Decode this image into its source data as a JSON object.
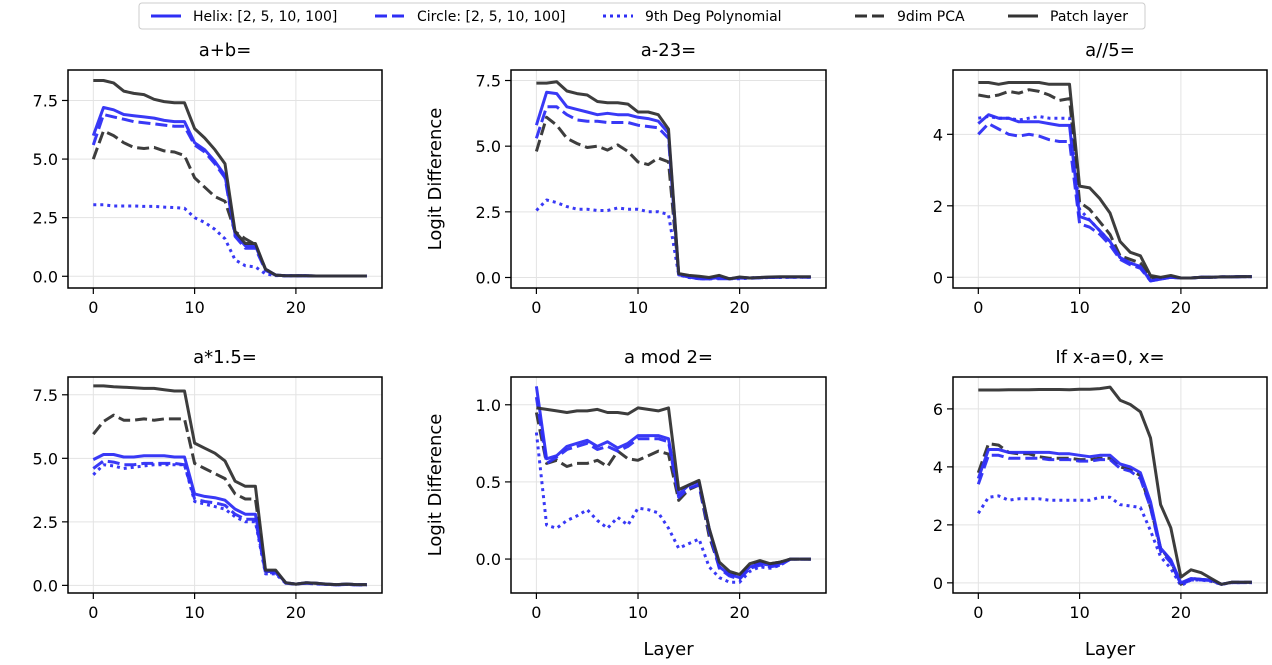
{
  "legend": [
    {
      "key": "helix",
      "label": "Helix: [2, 5, 10, 100]",
      "color": "#2e2ef5",
      "dash": "solid"
    },
    {
      "key": "circle",
      "label": "Circle: [2, 5, 10, 100]",
      "color": "#2e2ef5",
      "dash": "dashed"
    },
    {
      "key": "poly",
      "label": "9th Deg Polynomial",
      "color": "#2e2ef5",
      "dash": "dotted"
    },
    {
      "key": "pca",
      "label": "9dim PCA",
      "color": "#333333",
      "dash": "dashed"
    },
    {
      "key": "patch",
      "label": "Patch layer",
      "color": "#333333",
      "dash": "solid"
    }
  ],
  "chart_data": [
    {
      "type": "line",
      "title": "a+b=",
      "xlabel": "",
      "ylabel": "",
      "xlim": [
        -2.5,
        28.5
      ],
      "ylim": [
        -0.5,
        8.8
      ],
      "xticks": [
        0,
        10,
        20
      ],
      "yticks": [
        0.0,
        2.5,
        5.0,
        7.5
      ],
      "ytick_labels": [
        "0.0",
        "2.5",
        "5.0",
        "7.5"
      ],
      "grid": true,
      "x": [
        0,
        1,
        2,
        3,
        4,
        5,
        6,
        7,
        8,
        9,
        10,
        11,
        12,
        13,
        14,
        15,
        16,
        17,
        18,
        19,
        20,
        21,
        22,
        23,
        24,
        25,
        26,
        27
      ],
      "series": {
        "helix": [
          6.0,
          7.2,
          7.1,
          6.9,
          6.85,
          6.8,
          6.75,
          6.65,
          6.6,
          6.6,
          5.7,
          5.4,
          4.9,
          4.3,
          1.8,
          1.3,
          1.3,
          0.3,
          0.05,
          0.02,
          0.02,
          0.02,
          0.01,
          0.01,
          0.01,
          0.01,
          0.01,
          0.01
        ],
        "circle": [
          5.6,
          6.9,
          6.8,
          6.7,
          6.6,
          6.55,
          6.5,
          6.45,
          6.4,
          6.4,
          5.6,
          5.3,
          4.8,
          4.2,
          1.7,
          1.2,
          1.2,
          0.25,
          0.05,
          0.02,
          0.02,
          0.02,
          0.01,
          0.01,
          0.01,
          0.01,
          0.01,
          0.01
        ],
        "poly": [
          3.05,
          3.05,
          3.0,
          3.0,
          3.0,
          2.98,
          2.98,
          2.95,
          2.93,
          2.9,
          2.5,
          2.3,
          2.0,
          1.6,
          0.7,
          0.45,
          0.4,
          0.1,
          0.03,
          0.02,
          0.02,
          0.02,
          0.01,
          0.01,
          0.01,
          0.01,
          0.01,
          0.01
        ],
        "pca": [
          5.0,
          6.2,
          6.0,
          5.7,
          5.5,
          5.45,
          5.5,
          5.35,
          5.3,
          5.15,
          4.2,
          3.8,
          3.4,
          3.2,
          1.9,
          1.6,
          1.35,
          0.3,
          0.05,
          0.02,
          0.02,
          0.02,
          0.01,
          0.01,
          0.01,
          0.01,
          0.01,
          0.01
        ],
        "patch": [
          8.35,
          8.35,
          8.25,
          7.9,
          7.8,
          7.75,
          7.55,
          7.45,
          7.4,
          7.4,
          6.3,
          5.9,
          5.4,
          4.8,
          1.9,
          1.4,
          1.4,
          0.3,
          0.05,
          0.02,
          0.02,
          0.02,
          0.01,
          0.01,
          0.01,
          0.01,
          0.01,
          0.01
        ]
      }
    },
    {
      "type": "line",
      "title": "a-23=",
      "xlabel": "",
      "ylabel": "Logit Difference",
      "xlim": [
        -2.5,
        28.5
      ],
      "ylim": [
        -0.4,
        7.9
      ],
      "xticks": [
        0,
        10,
        20
      ],
      "yticks": [
        0.0,
        2.5,
        5.0,
        7.5
      ],
      "ytick_labels": [
        "0.0",
        "2.5",
        "5.0",
        "7.5"
      ],
      "grid": true,
      "x": [
        0,
        1,
        2,
        3,
        4,
        5,
        6,
        7,
        8,
        9,
        10,
        11,
        12,
        13,
        14,
        15,
        16,
        17,
        18,
        19,
        20,
        21,
        22,
        23,
        24,
        25,
        26,
        27
      ],
      "series": {
        "helix": [
          5.8,
          7.05,
          7.0,
          6.5,
          6.4,
          6.3,
          6.2,
          6.25,
          6.2,
          6.2,
          6.1,
          6.05,
          5.95,
          5.5,
          0.1,
          0.05,
          -0.05,
          -0.05,
          0.0,
          -0.05,
          0.0,
          -0.02,
          0.0,
          0.01,
          0.02,
          0.02,
          0.02,
          0.02
        ],
        "circle": [
          5.3,
          6.5,
          6.5,
          6.2,
          6.0,
          5.95,
          5.95,
          5.9,
          5.9,
          5.9,
          5.8,
          5.75,
          5.7,
          5.3,
          0.1,
          0.02,
          -0.05,
          -0.05,
          -0.05,
          -0.05,
          -0.02,
          -0.03,
          -0.01,
          0.0,
          0.01,
          0.01,
          0.01,
          0.01
        ],
        "poly": [
          2.55,
          2.95,
          2.85,
          2.7,
          2.6,
          2.6,
          2.55,
          2.55,
          2.65,
          2.6,
          2.6,
          2.5,
          2.5,
          2.4,
          0.1,
          0.0,
          -0.05,
          -0.05,
          -0.02,
          -0.05,
          -0.05,
          -0.02,
          -0.01,
          0.0,
          0.0,
          0.01,
          0.01,
          0.01
        ],
        "pca": [
          4.8,
          6.1,
          5.8,
          5.3,
          5.1,
          4.95,
          5.0,
          4.85,
          5.05,
          4.8,
          4.4,
          4.3,
          4.55,
          4.4,
          0.15,
          0.05,
          0.0,
          -0.05,
          0.05,
          -0.05,
          0.0,
          -0.02,
          0.0,
          0.01,
          0.02,
          0.02,
          0.02,
          0.02
        ],
        "patch": [
          7.4,
          7.4,
          7.45,
          7.1,
          7.0,
          6.95,
          6.7,
          6.65,
          6.65,
          6.6,
          6.3,
          6.3,
          6.2,
          5.65,
          0.15,
          0.08,
          0.05,
          0.0,
          0.08,
          -0.05,
          0.02,
          -0.02,
          0.0,
          0.02,
          0.03,
          0.03,
          0.03,
          0.03
        ]
      }
    },
    {
      "type": "line",
      "title": "a//5=",
      "xlabel": "",
      "ylabel": "",
      "xlim": [
        -2.5,
        28.5
      ],
      "ylim": [
        -0.3,
        5.8
      ],
      "xticks": [
        0,
        10,
        20
      ],
      "yticks": [
        0,
        2,
        4
      ],
      "ytick_labels": [
        "0",
        "2",
        "4"
      ],
      "grid": true,
      "x": [
        0,
        1,
        2,
        3,
        4,
        5,
        6,
        7,
        8,
        9,
        10,
        11,
        12,
        13,
        14,
        15,
        16,
        17,
        18,
        19,
        20,
        21,
        22,
        23,
        24,
        25,
        26,
        27
      ],
      "series": {
        "helix": [
          4.3,
          4.55,
          4.45,
          4.45,
          4.35,
          4.35,
          4.35,
          4.3,
          4.25,
          4.25,
          1.7,
          1.6,
          1.3,
          1.0,
          0.55,
          0.4,
          0.3,
          -0.1,
          -0.05,
          0.0,
          -0.02,
          -0.02,
          0.0,
          0.0,
          0.01,
          0.01,
          0.02,
          0.02
        ],
        "circle": [
          4.0,
          4.3,
          4.15,
          4.0,
          3.95,
          4.0,
          3.95,
          3.85,
          3.8,
          3.8,
          1.5,
          1.4,
          1.2,
          0.9,
          0.5,
          0.35,
          0.25,
          -0.1,
          -0.05,
          0.0,
          -0.02,
          -0.02,
          0.0,
          0.0,
          0.01,
          0.01,
          0.02,
          0.02
        ],
        "poly": [
          4.45,
          4.5,
          4.45,
          4.45,
          4.4,
          4.45,
          4.5,
          4.45,
          4.45,
          4.45,
          1.9,
          1.6,
          1.3,
          1.0,
          0.55,
          0.4,
          0.3,
          -0.05,
          -0.03,
          0.0,
          -0.02,
          -0.02,
          0.0,
          0.0,
          0.01,
          0.01,
          0.02,
          0.02
        ],
        "pca": [
          5.1,
          5.05,
          5.1,
          5.2,
          5.15,
          5.25,
          5.2,
          5.1,
          4.95,
          5.0,
          2.1,
          1.9,
          1.55,
          1.2,
          0.6,
          0.5,
          0.4,
          0.0,
          -0.02,
          0.0,
          -0.02,
          -0.02,
          0.0,
          0.0,
          0.01,
          0.01,
          0.02,
          0.02
        ],
        "patch": [
          5.45,
          5.45,
          5.4,
          5.45,
          5.45,
          5.45,
          5.45,
          5.4,
          5.4,
          5.4,
          2.55,
          2.5,
          2.2,
          1.8,
          1.0,
          0.7,
          0.6,
          0.05,
          0.0,
          0.05,
          -0.02,
          -0.02,
          0.0,
          0.0,
          0.01,
          0.01,
          0.02,
          0.02
        ]
      }
    },
    {
      "type": "line",
      "title": "a*1.5=",
      "xlabel": "",
      "ylabel": "",
      "xlim": [
        -2.5,
        28.5
      ],
      "ylim": [
        -0.3,
        8.2
      ],
      "xticks": [
        0,
        10,
        20
      ],
      "yticks": [
        0.0,
        2.5,
        5.0,
        7.5
      ],
      "ytick_labels": [
        "0.0",
        "2.5",
        "5.0",
        "7.5"
      ],
      "grid": true,
      "x": [
        0,
        1,
        2,
        3,
        4,
        5,
        6,
        7,
        8,
        9,
        10,
        11,
        12,
        13,
        14,
        15,
        16,
        17,
        18,
        19,
        20,
        21,
        22,
        23,
        24,
        25,
        26,
        27
      ],
      "series": {
        "helix": [
          4.95,
          5.15,
          5.15,
          5.05,
          5.05,
          5.1,
          5.1,
          5.1,
          5.05,
          5.05,
          3.6,
          3.5,
          3.45,
          3.35,
          3.0,
          2.8,
          2.8,
          0.55,
          0.55,
          0.1,
          0.05,
          0.1,
          0.08,
          0.05,
          0.03,
          0.05,
          0.03,
          0.03
        ],
        "circle": [
          4.6,
          4.9,
          4.85,
          4.75,
          4.75,
          4.8,
          4.8,
          4.8,
          4.8,
          4.75,
          3.4,
          3.3,
          3.25,
          3.15,
          2.8,
          2.6,
          2.6,
          0.5,
          0.5,
          0.08,
          0.05,
          0.08,
          0.06,
          0.04,
          0.02,
          0.04,
          0.02,
          0.02
        ],
        "poly": [
          4.35,
          4.75,
          4.7,
          4.6,
          4.65,
          4.7,
          4.75,
          4.75,
          4.75,
          4.75,
          3.3,
          3.2,
          3.1,
          3.0,
          2.7,
          2.5,
          2.5,
          0.45,
          0.45,
          0.08,
          0.05,
          0.08,
          0.06,
          0.04,
          0.02,
          0.04,
          0.02,
          0.02
        ],
        "pca": [
          5.95,
          6.45,
          6.7,
          6.5,
          6.5,
          6.55,
          6.5,
          6.55,
          6.55,
          6.55,
          4.8,
          4.6,
          4.4,
          4.2,
          3.6,
          3.4,
          3.4,
          0.55,
          0.55,
          0.1,
          0.05,
          0.1,
          0.08,
          0.05,
          0.03,
          0.05,
          0.03,
          0.03
        ],
        "patch": [
          7.85,
          7.85,
          7.82,
          7.8,
          7.78,
          7.75,
          7.75,
          7.7,
          7.65,
          7.65,
          5.6,
          5.4,
          5.2,
          4.9,
          4.1,
          3.9,
          3.9,
          0.6,
          0.6,
          0.1,
          0.05,
          0.1,
          0.08,
          0.05,
          0.03,
          0.05,
          0.03,
          0.03
        ]
      }
    },
    {
      "type": "line",
      "title": "a mod 2=",
      "xlabel": "Layer",
      "ylabel": "Logit Difference",
      "xlim": [
        -2.5,
        28.5
      ],
      "ylim": [
        -0.22,
        1.18
      ],
      "xticks": [
        0,
        10,
        20
      ],
      "yticks": [
        0.0,
        0.5,
        1.0
      ],
      "ytick_labels": [
        "0.0",
        "0.5",
        "1.0"
      ],
      "grid": true,
      "x": [
        0,
        1,
        2,
        3,
        4,
        5,
        6,
        7,
        8,
        9,
        10,
        11,
        12,
        13,
        14,
        15,
        16,
        17,
        18,
        19,
        20,
        21,
        22,
        23,
        24,
        25,
        26,
        27
      ],
      "series": {
        "helix": [
          1.12,
          0.65,
          0.67,
          0.73,
          0.75,
          0.77,
          0.73,
          0.76,
          0.72,
          0.75,
          0.8,
          0.8,
          0.8,
          0.78,
          0.42,
          0.48,
          0.5,
          0.2,
          -0.05,
          -0.1,
          -0.12,
          -0.05,
          -0.03,
          -0.04,
          -0.03,
          0.0,
          0.0,
          0.0
        ],
        "circle": [
          1.05,
          0.62,
          0.66,
          0.71,
          0.73,
          0.75,
          0.71,
          0.73,
          0.7,
          0.73,
          0.78,
          0.78,
          0.78,
          0.76,
          0.4,
          0.46,
          0.48,
          0.18,
          -0.06,
          -0.11,
          -0.13,
          -0.06,
          -0.04,
          -0.05,
          -0.04,
          0.0,
          0.0,
          0.0
        ],
        "poly": [
          0.82,
          0.22,
          0.2,
          0.25,
          0.28,
          0.32,
          0.25,
          0.2,
          0.27,
          0.22,
          0.33,
          0.32,
          0.3,
          0.2,
          0.07,
          0.1,
          0.13,
          -0.05,
          -0.12,
          -0.15,
          -0.15,
          -0.08,
          -0.05,
          -0.06,
          -0.04,
          0.0,
          0.0,
          0.0
        ],
        "pca": [
          0.95,
          0.62,
          0.64,
          0.6,
          0.62,
          0.62,
          0.64,
          0.6,
          0.7,
          0.65,
          0.64,
          0.67,
          0.7,
          0.68,
          0.38,
          0.45,
          0.48,
          0.15,
          -0.05,
          -0.1,
          -0.1,
          -0.04,
          -0.02,
          -0.03,
          -0.02,
          0.0,
          0.0,
          0.0
        ],
        "patch": [
          0.98,
          0.97,
          0.96,
          0.95,
          0.96,
          0.96,
          0.97,
          0.95,
          0.95,
          0.94,
          0.98,
          0.97,
          0.96,
          0.98,
          0.45,
          0.48,
          0.51,
          0.2,
          -0.02,
          -0.08,
          -0.1,
          -0.03,
          -0.01,
          -0.03,
          -0.02,
          0.0,
          0.0,
          0.0
        ]
      }
    },
    {
      "type": "line",
      "title": "If x-a=0, x=",
      "xlabel": "Layer",
      "ylabel": "",
      "xlim": [
        -2.5,
        28.5
      ],
      "ylim": [
        -0.35,
        7.1
      ],
      "xticks": [
        0,
        10,
        20
      ],
      "yticks": [
        0,
        2,
        4,
        6
      ],
      "ytick_labels": [
        "0",
        "2",
        "4",
        "6"
      ],
      "grid": true,
      "x": [
        0,
        1,
        2,
        3,
        4,
        5,
        6,
        7,
        8,
        9,
        10,
        11,
        12,
        13,
        14,
        15,
        16,
        17,
        18,
        19,
        20,
        21,
        22,
        23,
        24,
        25,
        26,
        27
      ],
      "series": {
        "helix": [
          3.6,
          4.6,
          4.6,
          4.5,
          4.5,
          4.5,
          4.5,
          4.5,
          4.45,
          4.45,
          4.4,
          4.35,
          4.4,
          4.4,
          4.1,
          4.0,
          3.8,
          2.8,
          1.2,
          0.8,
          0.0,
          0.15,
          0.12,
          0.1,
          -0.05,
          0.02,
          0.02,
          0.02
        ],
        "circle": [
          3.4,
          4.4,
          4.4,
          4.3,
          4.3,
          4.3,
          4.3,
          4.25,
          4.25,
          4.25,
          4.2,
          4.2,
          4.25,
          4.25,
          3.95,
          3.85,
          3.6,
          2.6,
          1.1,
          0.7,
          -0.05,
          0.1,
          0.1,
          0.08,
          -0.05,
          0.01,
          0.01,
          0.01
        ],
        "poly": [
          2.4,
          2.95,
          3.0,
          2.85,
          2.9,
          2.9,
          2.9,
          2.85,
          2.85,
          2.85,
          2.85,
          2.85,
          2.95,
          2.95,
          2.7,
          2.65,
          2.6,
          1.8,
          0.9,
          0.5,
          -0.1,
          0.1,
          0.1,
          0.05,
          -0.05,
          0.01,
          0.01,
          0.01
        ],
        "pca": [
          3.8,
          4.8,
          4.75,
          4.5,
          4.45,
          4.45,
          4.35,
          4.3,
          4.3,
          4.3,
          4.25,
          4.25,
          4.3,
          4.3,
          4.0,
          3.9,
          3.7,
          2.6,
          1.2,
          0.75,
          -0.05,
          0.15,
          0.12,
          0.08,
          -0.05,
          0.02,
          0.02,
          0.02
        ],
        "patch": [
          6.65,
          6.65,
          6.65,
          6.66,
          6.66,
          6.66,
          6.67,
          6.67,
          6.67,
          6.66,
          6.68,
          6.68,
          6.7,
          6.75,
          6.3,
          6.15,
          5.9,
          5.0,
          2.7,
          1.9,
          0.2,
          0.45,
          0.35,
          0.15,
          -0.05,
          0.02,
          0.02,
          0.02
        ]
      }
    }
  ]
}
